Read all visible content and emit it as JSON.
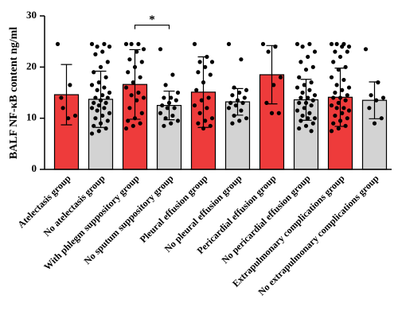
{
  "chart_data": {
    "type": "bar",
    "y_label": "BALF NF-κB content ng/ml",
    "categories": [
      "Atelectasis group",
      "No atelectasis group",
      "With phlegm suppository group",
      "No sputum suppository group",
      "Pleural effusion group",
      "No pleural effusion group",
      "Pericardial effusion group",
      "No pericardial effusion group",
      "Extrapulmonary complications group",
      "No extrapulmonary complications group"
    ],
    "values": [
      14.6,
      13.7,
      16.6,
      12.5,
      15.1,
      13.2,
      18.5,
      13.6,
      14.1,
      13.5
    ],
    "errors": [
      5.9,
      5.5,
      6.8,
      2.8,
      6.9,
      2.6,
      5.7,
      4.0,
      5.7,
      3.6
    ],
    "colors": [
      "#ee3b3b",
      "#d3d3d3",
      "#ee3b3b",
      "#d3d3d3",
      "#ee3b3b",
      "#d3d3d3",
      "#ee3b3b",
      "#d3d3d3",
      "#ee3b3b",
      "#d3d3d3"
    ],
    "points": [
      [
        24.5,
        16.5,
        12,
        10.5,
        10,
        14
      ],
      [
        24.5,
        24.5,
        24,
        24,
        23,
        22.5,
        21,
        20,
        19,
        18,
        17,
        16.5,
        16,
        15.5,
        15,
        14.5,
        14,
        14,
        13.5,
        13,
        13,
        12.5,
        12,
        12,
        11.5,
        11,
        10.5,
        10,
        9.5,
        9,
        8.5,
        8,
        7.5,
        7
      ],
      [
        24.5,
        24.5,
        24.5,
        23.5,
        23,
        21.5,
        21,
        20,
        19,
        18,
        17,
        16,
        15,
        14.5,
        14,
        13.5,
        12,
        11,
        10,
        9.5,
        9,
        8.5,
        8
      ],
      [
        23.5,
        18.5,
        16.5,
        15,
        14,
        14,
        13.5,
        13,
        12.5,
        12,
        12,
        11,
        10.5,
        10,
        9.5,
        9,
        8.5
      ],
      [
        24.5,
        22,
        21,
        21,
        20,
        19,
        18.5,
        17,
        15.5,
        14,
        13.5,
        12.5,
        12,
        11,
        10,
        9.5,
        9,
        8.5,
        8
      ],
      [
        24.5,
        21.5,
        16,
        15.5,
        15,
        14.5,
        14,
        13.5,
        13,
        13,
        12.5,
        12,
        11.5,
        10.5,
        10,
        9.5,
        9
      ],
      [
        24.5,
        24,
        23,
        18,
        16.5,
        13,
        11,
        11
      ],
      [
        24.5,
        24.5,
        24,
        23,
        22,
        21,
        20,
        19.5,
        18,
        17,
        16.5,
        16,
        15.5,
        15,
        14.5,
        14,
        14,
        13.5,
        13,
        13,
        12.5,
        12,
        11.5,
        11,
        10.5,
        10,
        10,
        9.5,
        9,
        8.5,
        8,
        7.5
      ],
      [
        24.5,
        24.5,
        24.5,
        24,
        24,
        23,
        23,
        22,
        21,
        20,
        19.5,
        18,
        17.5,
        16.5,
        16,
        15.5,
        15,
        14.5,
        14,
        14,
        13.5,
        13,
        12.5,
        12,
        12,
        11.5,
        11,
        10.5,
        10,
        9.5,
        9,
        8.5,
        8,
        7.5
      ],
      [
        23.5,
        17,
        14.5,
        14,
        13.5,
        12,
        10,
        9
      ]
    ],
    "annotation": {
      "text": "*",
      "between": [
        "With phlegm suppository group",
        "No sputum suppository group"
      ],
      "y": 28.2
    },
    "ylim": [
      0,
      30
    ],
    "yticks": [
      0,
      10,
      20,
      30
    ]
  }
}
